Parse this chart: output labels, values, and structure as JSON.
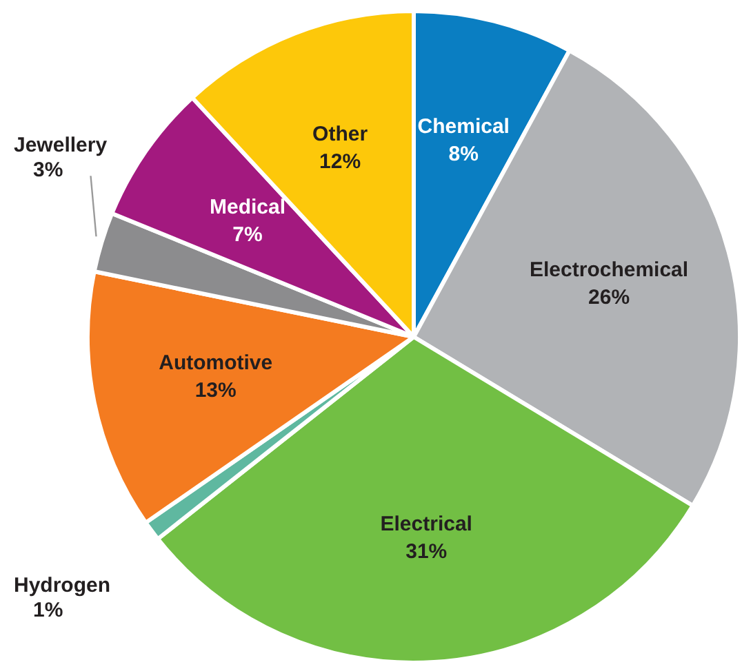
{
  "chart_data": {
    "type": "pie",
    "categories": [
      "Chemical",
      "Electrochemical",
      "Electrical",
      "Hydrogen",
      "Automotive",
      "Jewellery",
      "Medical",
      "Other"
    ],
    "values": [
      8,
      26,
      31,
      1,
      13,
      3,
      7,
      12
    ],
    "value_labels": [
      "8%",
      "26%",
      "31%",
      "1%",
      "13%",
      "3%",
      "7%",
      "12%"
    ],
    "colors": [
      "#0a7ec2",
      "#b1b3b6",
      "#72bf44",
      "#5fb8a0",
      "#f47b20",
      "#8c8c8e",
      "#a3197f",
      "#fdc80a"
    ],
    "legend": false
  }
}
